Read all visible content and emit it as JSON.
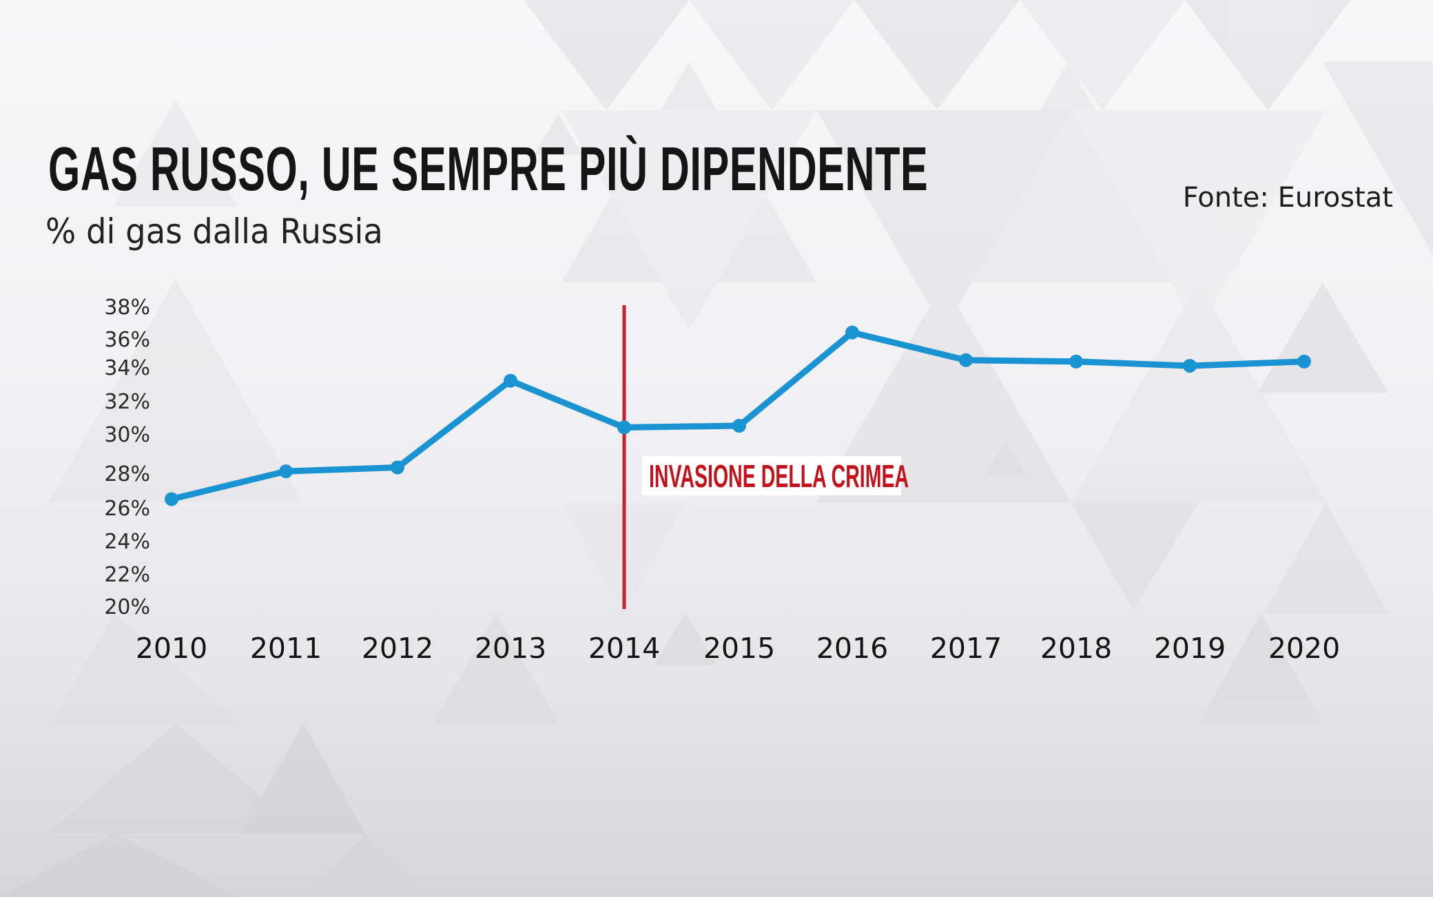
{
  "header": {
    "title": "GAS RUSSO, UE SEMPRE PIÙ DIPENDENTE",
    "subtitle": "% di gas dalla Russia",
    "source": "Fonte: Eurostat"
  },
  "annotation": {
    "label": "INVASIONE DELLA CRIMEA",
    "year": "2014",
    "color": "#c4121a"
  },
  "colors": {
    "line": "#1a93d2",
    "marker": "#1a93d2",
    "event_line": "#c8202e",
    "title": "#151515",
    "annotation_text": "#c4121a",
    "background": "#f1f1f3"
  },
  "chart_data": {
    "type": "line",
    "title": "GAS RUSSO, UE SEMPRE PIÙ DIPENDENTE",
    "subtitle": "% di gas dalla Russia",
    "source": "Fonte: Eurostat",
    "xlabel": "",
    "ylabel": "% di gas dalla Russia",
    "categories": [
      "2010",
      "2011",
      "2012",
      "2013",
      "2014",
      "2015",
      "2016",
      "2017",
      "2018",
      "2019",
      "2020"
    ],
    "series": [
      {
        "name": "% di gas dalla Russia",
        "values": [
          26.5,
          28.1,
          28.3,
          33.2,
          30.4,
          30.5,
          36.4,
          34.5,
          34.4,
          34.1,
          34.4
        ]
      }
    ],
    "yticks": [
      "38%",
      "36%",
      "34%",
      "32%",
      "30%",
      "28%",
      "26%",
      "24%",
      "22%",
      "20%"
    ],
    "ylim": [
      20,
      38
    ],
    "grid": false,
    "legend": "none",
    "annotations": [
      {
        "x": "2014",
        "type": "vertical-line",
        "label": "INVASIONE DELLA CRIMEA"
      }
    ]
  }
}
